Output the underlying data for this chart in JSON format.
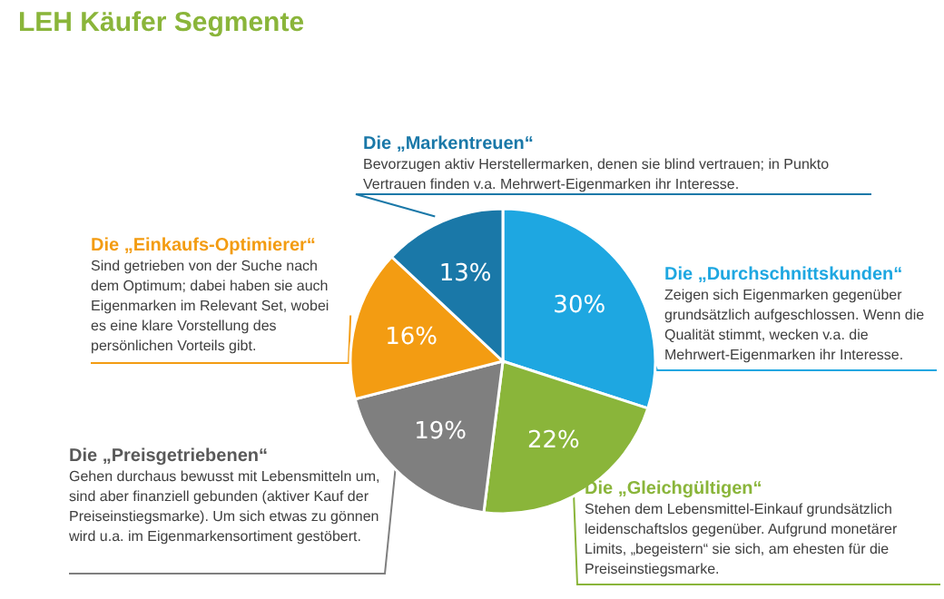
{
  "chart_data": {
    "type": "pie",
    "title": "LEH Käufer Segmente",
    "categories": [
      "Die „Durchschnittskunden“",
      "Die „Gleichgültigen“",
      "Die „Preisgetriebenen“",
      "Die „Einkaufs-Optimierer“",
      "Die „Markentreuen“"
    ],
    "values": [
      30,
      22,
      19,
      16,
      13
    ],
    "colors": [
      "#1ea7e1",
      "#8ab53a",
      "#7f7f7f",
      "#f39c12",
      "#1a78a8"
    ],
    "value_labels": [
      "30%",
      "22%",
      "19%",
      "16%",
      "13%"
    ],
    "annotations": [
      "Zeigen sich Eigenmarken gegenüber grundsätzlich aufgeschlossen. Wenn die Qualität stimmt, wecken v.a. die Mehrwert-Eigenmarken ihr Interesse.",
      "Stehen dem Lebensmittel-Einkauf grundsätzlich leidenschaftslos gegenüber. Aufgrund monetärer Limits, „begeistern“ sie sich, am ehesten für die Preiseinstiegsmarke.",
      "Gehen durchaus bewusst mit Lebensmitteln um, sind aber finanziell gebunden (aktiver Kauf der Preiseinstiegsmarke). Um sich etwas zu gönnen wird u.a. im Eigenmarkensortiment gestöbert.",
      "Sind getrieben von der Suche nach dem Optimum; dabei haben sie auch Eigenmarken im Relevant Set, wobei es eine klare Vorstellung des persönlichen Vorteils gibt.",
      "Bevorzugen aktiv Herstellermarken, denen sie blind vertrauen; in Punkto Vertrauen finden v.a. Mehrwert-Eigenmarken ihr Interesse."
    ]
  }
}
